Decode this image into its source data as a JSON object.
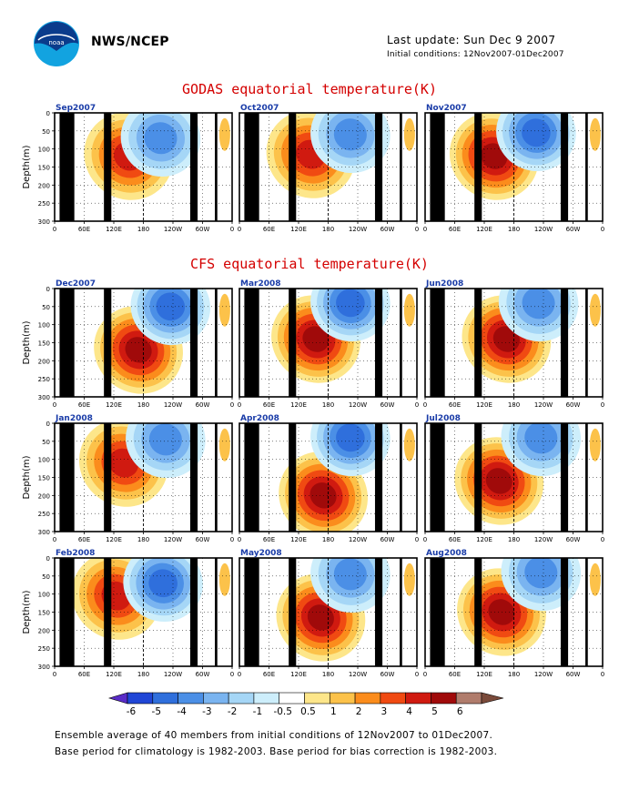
{
  "header": {
    "org": "NWS/NCEP",
    "last_update": "Last update: Sun Dec  9 2007",
    "initial_conditions": "Initial conditions: 12Nov2007-01Dec2007",
    "logo_text": "noaa"
  },
  "sections": {
    "godas_title": "GODAS equatorial temperature(K)",
    "cfs_title": "CFS equatorial temperature(K)"
  },
  "footnotes": {
    "line1": "Ensemble average of 40 members from initial conditions of 12Nov2007 to 01Dec2007.",
    "line2": "Base period for climatology is 1982-2003. Base period for bias correction is 1982-2003."
  },
  "chart_data": {
    "type": "heatmap",
    "ylabel": "Depth(m)",
    "x_ticks": [
      "0",
      "60E",
      "120E",
      "180",
      "120W",
      "60W",
      "0"
    ],
    "y_ticks": [
      "0",
      "50",
      "100",
      "150",
      "200",
      "250",
      "300"
    ],
    "ylim": [
      0,
      300
    ],
    "colorbar": {
      "levels": [
        "-6",
        "-5",
        "-4",
        "-3",
        "-2",
        "-1",
        "-0.5",
        "0.5",
        "1",
        "2",
        "3",
        "4",
        "5",
        "6"
      ],
      "colors": [
        "#5a2cc8",
        "#2046d6",
        "#2f6fdc",
        "#4b8fe6",
        "#7ab4f0",
        "#a5d6f6",
        "#cdeefb",
        "#ffffff",
        "#fde68a",
        "#fcc24a",
        "#fb8c1c",
        "#f04a12",
        "#d01a10",
        "#a00a0a",
        "#b07c6c",
        "#7a4a3a"
      ],
      "below_color": "#5a2cc8",
      "above_color": "#7a4a3a"
    },
    "panels": [
      {
        "label": "Sep2007",
        "group": "GODAS",
        "row": 0,
        "col": 0,
        "warm_center": [
          150,
          120
        ],
        "warm_level": 4,
        "cool_center": [
          215,
          70
        ],
        "cool_level": -3
      },
      {
        "label": "Oct2007",
        "group": "GODAS",
        "row": 0,
        "col": 1,
        "warm_center": [
          145,
          115
        ],
        "warm_level": 4,
        "cool_center": [
          225,
          60
        ],
        "cool_level": -3
      },
      {
        "label": "Nov2007",
        "group": "GODAS",
        "row": 0,
        "col": 2,
        "warm_center": [
          140,
          120
        ],
        "warm_level": 5,
        "cool_center": [
          225,
          55
        ],
        "cool_level": -4
      },
      {
        "label": "Dec2007",
        "group": "CFS",
        "row": 1,
        "col": 0,
        "warm_center": [
          170,
          170
        ],
        "warm_level": 5,
        "cool_center": [
          235,
          50
        ],
        "cool_level": -4
      },
      {
        "label": "Mar2008",
        "group": "CFS",
        "row": 1,
        "col": 1,
        "warm_center": [
          155,
          140
        ],
        "warm_level": 5,
        "cool_center": [
          225,
          40
        ],
        "cool_level": -4
      },
      {
        "label": "Jun2008",
        "group": "CFS",
        "row": 1,
        "col": 2,
        "warm_center": [
          165,
          140
        ],
        "warm_level": 5,
        "cool_center": [
          230,
          40
        ],
        "cool_level": -3
      },
      {
        "label": "Jan2008",
        "group": "CFS",
        "row": 2,
        "col": 0,
        "warm_center": [
          140,
          110
        ],
        "warm_level": 4,
        "cool_center": [
          225,
          45
        ],
        "cool_level": -3
      },
      {
        "label": "Apr2008",
        "group": "CFS",
        "row": 2,
        "col": 1,
        "warm_center": [
          170,
          200
        ],
        "warm_level": 5,
        "cool_center": [
          225,
          40
        ],
        "cool_level": -4
      },
      {
        "label": "Jul2008",
        "group": "CFS",
        "row": 2,
        "col": 2,
        "warm_center": [
          150,
          160
        ],
        "warm_level": 5,
        "cool_center": [
          235,
          40
        ],
        "cool_level": -3
      },
      {
        "label": "Feb2008",
        "group": "CFS",
        "row": 3,
        "col": 0,
        "warm_center": [
          125,
          105
        ],
        "warm_level": 4,
        "cool_center": [
          220,
          70
        ],
        "cool_level": -4
      },
      {
        "label": "May2008",
        "group": "CFS",
        "row": 3,
        "col": 1,
        "warm_center": [
          165,
          165
        ],
        "warm_level": 5,
        "cool_center": [
          225,
          45
        ],
        "cool_level": -3
      },
      {
        "label": "Aug2008",
        "group": "CFS",
        "row": 3,
        "col": 2,
        "warm_center": [
          155,
          150
        ],
        "warm_level": 5,
        "cool_center": [
          235,
          40
        ],
        "cool_level": -3
      }
    ]
  }
}
